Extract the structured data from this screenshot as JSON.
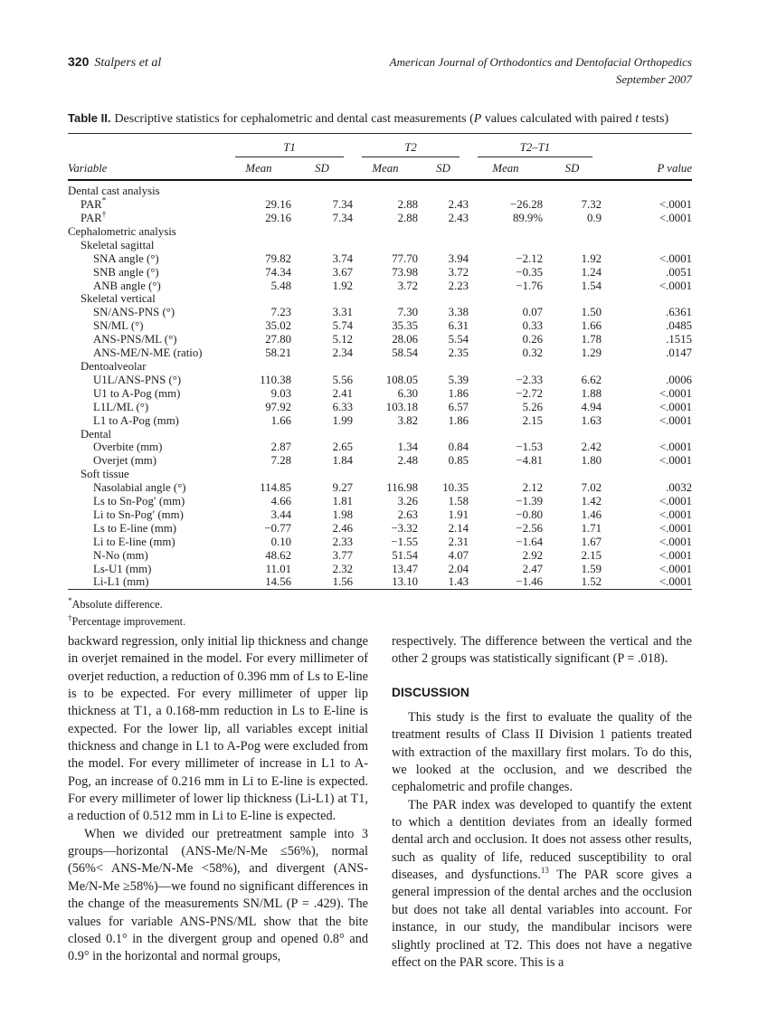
{
  "header": {
    "page_number": "320",
    "authors": "Stalpers et al",
    "journal_line1": "American Journal of Orthodontics and Dentofacial Orthopedics",
    "journal_line2": "September 2007"
  },
  "table": {
    "label": "Table II.",
    "caption": {
      "pre": "Descriptive statistics for cephalometric and dental cast measurements (",
      "p": "P",
      "mid": " values calculated with paired ",
      "t": "t",
      "post": " tests)"
    },
    "spanners": {
      "t1": "T1",
      "t2": "T2",
      "t2t1": "T2–T1"
    },
    "variable_header": "Variable",
    "sub_headers": {
      "mean1": "Mean",
      "sd1": "SD",
      "mean2": "Mean",
      "sd2": "SD",
      "mean3": "Mean",
      "sd3": "SD"
    },
    "pvalue_header": "P value",
    "rows": [
      {
        "type": "group",
        "indent": 0,
        "label": "Dental cast analysis"
      },
      {
        "type": "data",
        "indent": 1,
        "label": "PAR",
        "sup": "*",
        "values": [
          "29.16",
          "7.34",
          "2.88",
          "2.43",
          "−26.28",
          "7.32",
          "<.0001"
        ]
      },
      {
        "type": "data",
        "indent": 1,
        "label": "PAR",
        "sup": "†",
        "values": [
          "29.16",
          "7.34",
          "2.88",
          "2.43",
          "89.9%",
          "0.9",
          "<.0001"
        ]
      },
      {
        "type": "group",
        "indent": 0,
        "label": "Cephalometric analysis"
      },
      {
        "type": "group",
        "indent": 1,
        "label": "Skeletal sagittal"
      },
      {
        "type": "data",
        "indent": 2,
        "label": "SNA angle (°)",
        "values": [
          "79.82",
          "3.74",
          "77.70",
          "3.94",
          "−2.12",
          "1.92",
          "<.0001"
        ]
      },
      {
        "type": "data",
        "indent": 2,
        "label": "SNB angle (°)",
        "values": [
          "74.34",
          "3.67",
          "73.98",
          "3.72",
          "−0.35",
          "1.24",
          ".0051"
        ]
      },
      {
        "type": "data",
        "indent": 2,
        "label": "ANB angle (°)",
        "values": [
          "5.48",
          "1.92",
          "3.72",
          "2.23",
          "−1.76",
          "1.54",
          "<.0001"
        ]
      },
      {
        "type": "group",
        "indent": 1,
        "label": "Skeletal vertical"
      },
      {
        "type": "data",
        "indent": 2,
        "label": "SN/ANS-PNS (°)",
        "values": [
          "7.23",
          "3.31",
          "7.30",
          "3.38",
          "0.07",
          "1.50",
          ".6361"
        ]
      },
      {
        "type": "data",
        "indent": 2,
        "label": "SN/ML (°)",
        "values": [
          "35.02",
          "5.74",
          "35.35",
          "6.31",
          "0.33",
          "1.66",
          ".0485"
        ]
      },
      {
        "type": "data",
        "indent": 2,
        "label": "ANS-PNS/ML (°)",
        "values": [
          "27.80",
          "5.12",
          "28.06",
          "5.54",
          "0.26",
          "1.78",
          ".1515"
        ]
      },
      {
        "type": "data",
        "indent": 2,
        "label": "ANS-ME/N-ME (ratio)",
        "values": [
          "58.21",
          "2.34",
          "58.54",
          "2.35",
          "0.32",
          "1.29",
          ".0147"
        ]
      },
      {
        "type": "group",
        "indent": 1,
        "label": "Dentoalveolar"
      },
      {
        "type": "data",
        "indent": 2,
        "label": "U1L/ANS-PNS (°)",
        "values": [
          "110.38",
          "5.56",
          "108.05",
          "5.39",
          "−2.33",
          "6.62",
          ".0006"
        ]
      },
      {
        "type": "data",
        "indent": 2,
        "label": "U1 to A-Pog (mm)",
        "values": [
          "9.03",
          "2.41",
          "6.30",
          "1.86",
          "−2.72",
          "1.88",
          "<.0001"
        ]
      },
      {
        "type": "data",
        "indent": 2,
        "label": "L1L/ML (°)",
        "values": [
          "97.92",
          "6.33",
          "103.18",
          "6.57",
          "5.26",
          "4.94",
          "<.0001"
        ]
      },
      {
        "type": "data",
        "indent": 2,
        "label": "L1 to A-Pog (mm)",
        "values": [
          "1.66",
          "1.99",
          "3.82",
          "1.86",
          "2.15",
          "1.63",
          "<.0001"
        ]
      },
      {
        "type": "group",
        "indent": 1,
        "label": "Dental"
      },
      {
        "type": "data",
        "indent": 2,
        "label": "Overbite (mm)",
        "values": [
          "2.87",
          "2.65",
          "1.34",
          "0.84",
          "−1.53",
          "2.42",
          "<.0001"
        ]
      },
      {
        "type": "data",
        "indent": 2,
        "label": "Overjet (mm)",
        "values": [
          "7.28",
          "1.84",
          "2.48",
          "0.85",
          "−4.81",
          "1.80",
          "<.0001"
        ]
      },
      {
        "type": "group",
        "indent": 1,
        "label": "Soft tissue"
      },
      {
        "type": "data",
        "indent": 2,
        "label": "Nasolabial angle (°)",
        "values": [
          "114.85",
          "9.27",
          "116.98",
          "10.35",
          "2.12",
          "7.02",
          ".0032"
        ]
      },
      {
        "type": "data",
        "indent": 2,
        "label": "Ls to Sn-Pog′ (mm)",
        "values": [
          "4.66",
          "1.81",
          "3.26",
          "1.58",
          "−1.39",
          "1.42",
          "<.0001"
        ]
      },
      {
        "type": "data",
        "indent": 2,
        "label": "Li to Sn-Pog′ (mm)",
        "values": [
          "3.44",
          "1.98",
          "2.63",
          "1.91",
          "−0.80",
          "1.46",
          "<.0001"
        ]
      },
      {
        "type": "data",
        "indent": 2,
        "label": "Ls to E-line (mm)",
        "values": [
          "−0.77",
          "2.46",
          "−3.32",
          "2.14",
          "−2.56",
          "1.71",
          "<.0001"
        ]
      },
      {
        "type": "data",
        "indent": 2,
        "label": "Li to E-line (mm)",
        "values": [
          "0.10",
          "2.33",
          "−1.55",
          "2.31",
          "−1.64",
          "1.67",
          "<.0001"
        ]
      },
      {
        "type": "data",
        "indent": 2,
        "label": "N-No (mm)",
        "values": [
          "48.62",
          "3.77",
          "51.54",
          "4.07",
          "2.92",
          "2.15",
          "<.0001"
        ]
      },
      {
        "type": "data",
        "indent": 2,
        "label": "Ls-U1 (mm)",
        "values": [
          "11.01",
          "2.32",
          "13.47",
          "2.04",
          "2.47",
          "1.59",
          "<.0001"
        ]
      },
      {
        "type": "data",
        "indent": 2,
        "label": "Li-L1 (mm)",
        "values": [
          "14.56",
          "1.56",
          "13.10",
          "1.43",
          "−1.46",
          "1.52",
          "<.0001"
        ]
      }
    ],
    "footnotes": [
      {
        "marker": "*",
        "text": "Absolute difference."
      },
      {
        "marker": "†",
        "text": "Percentage improvement."
      }
    ]
  },
  "body": {
    "left_p1": "backward regression, only initial lip thickness and change in overjet remained in the model. For every millimeter of overjet reduction, a reduction of 0.396 mm of Ls to E-line is to be expected. For every millimeter of upper lip thickness at T1, a 0.168-mm reduction in Ls to E-line is expected. For the lower lip, all variables except initial thickness and change in L1 to A-Pog were excluded from the model. For every millimeter of increase in L1 to A-Pog, an increase of 0.216 mm in Li to E-line is expected. For every millimeter of lower lip thickness (Li-L1) at T1, a reduction of 0.512 mm in Li to E-line is expected.",
    "left_p2": "When we divided our pretreatment sample into 3 groups—horizontal (ANS-Me/N-Me ≤56%), normal (56%< ANS-Me/N-Me <58%), and divergent (ANS-Me/N-Me ≥58%)—we found no significant differences in the change of the measurements SN/ML (P = .429). The values for variable ANS-PNS/ML show that the bite closed 0.1° in the divergent group and opened 0.8° and 0.9° in the horizontal and normal groups,",
    "right_p1": "respectively. The difference between the vertical and the other 2 groups was statistically significant (P = .018).",
    "discussion_heading": "DISCUSSION",
    "right_p2": "This study is the first to evaluate the quality of the treatment results of Class II Division 1 patients treated with extraction of the maxillary first molars. To do this, we looked at the occlusion, and we described the cephalometric and profile changes.",
    "right_p3_pre": "The PAR index was developed to quantify the extent to which a dentition deviates from an ideally formed dental arch and occlusion. It does not assess other results, such as quality of life, reduced susceptibility to oral diseases, and dysfunctions.",
    "right_p3_sup": "13",
    "right_p3_post": " The PAR score gives a general impression of the dental arches and the occlusion but does not take all dental variables into account. For instance, in our study, the mandibular incisors were slightly proclined at T2. This does not have a negative effect on the PAR score. This is a"
  }
}
